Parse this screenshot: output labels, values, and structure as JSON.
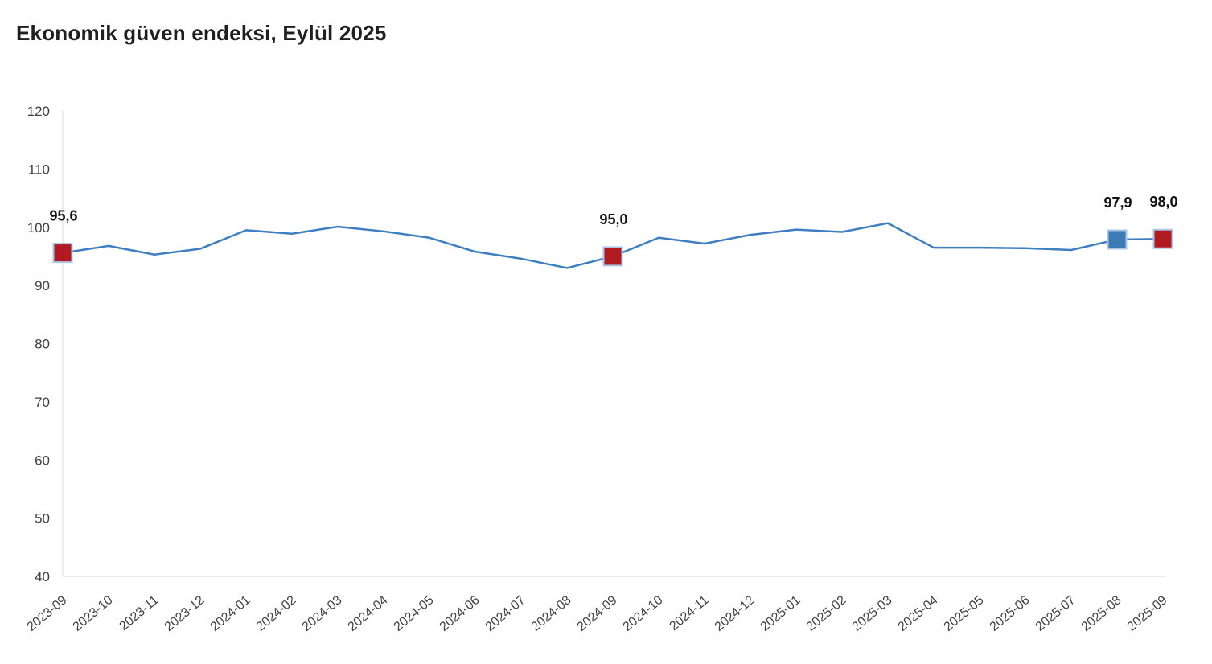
{
  "page": {
    "background_color": "#ffffff"
  },
  "chart_data": {
    "type": "line",
    "title": "Ekonomik güven endeksi, Eylül 2025",
    "xlabel": "",
    "ylabel": "",
    "ylim": [
      40,
      120
    ],
    "yticks": [
      40,
      50,
      60,
      70,
      80,
      90,
      100,
      110,
      120
    ],
    "grid": false,
    "legend": false,
    "line_color": "#3e7fc1",
    "axis_color": "#d9d9d9",
    "tick_label_color": "#404040",
    "marker_stroke_color": "#a9c7e7",
    "categories": [
      "2023-09",
      "2023-10",
      "2023-11",
      "2023-12",
      "2024-01",
      "2024-02",
      "2024-03",
      "2024-04",
      "2024-05",
      "2024-06",
      "2024-07",
      "2024-08",
      "2024-09",
      "2024-10",
      "2024-11",
      "2024-12",
      "2025-01",
      "2025-02",
      "2025-03",
      "2025-04",
      "2025-05",
      "2025-06",
      "2025-07",
      "2025-08",
      "2025-09"
    ],
    "series": [
      {
        "name": "Ekonomik güven endeksi",
        "values": [
          95.6,
          96.8,
          95.3,
          96.3,
          99.5,
          98.9,
          100.1,
          99.3,
          98.2,
          95.8,
          94.6,
          93.0,
          95.0,
          98.2,
          97.2,
          98.7,
          99.6,
          99.2,
          100.7,
          96.5,
          96.5,
          96.4,
          96.1,
          97.9,
          98.0
        ]
      }
    ],
    "marked_points": [
      {
        "category": "2023-09",
        "index": 0,
        "value": 95.6,
        "label": "95,6",
        "marker_color": "#b11a21"
      },
      {
        "category": "2024-09",
        "index": 12,
        "value": 95.0,
        "label": "95,0",
        "marker_color": "#b11a21"
      },
      {
        "category": "2025-08",
        "index": 23,
        "value": 97.9,
        "label": "97,9",
        "marker_color": "#3c7ab8"
      },
      {
        "category": "2025-09",
        "index": 24,
        "value": 98.0,
        "label": "98,0",
        "marker_color": "#b11a21"
      }
    ]
  }
}
